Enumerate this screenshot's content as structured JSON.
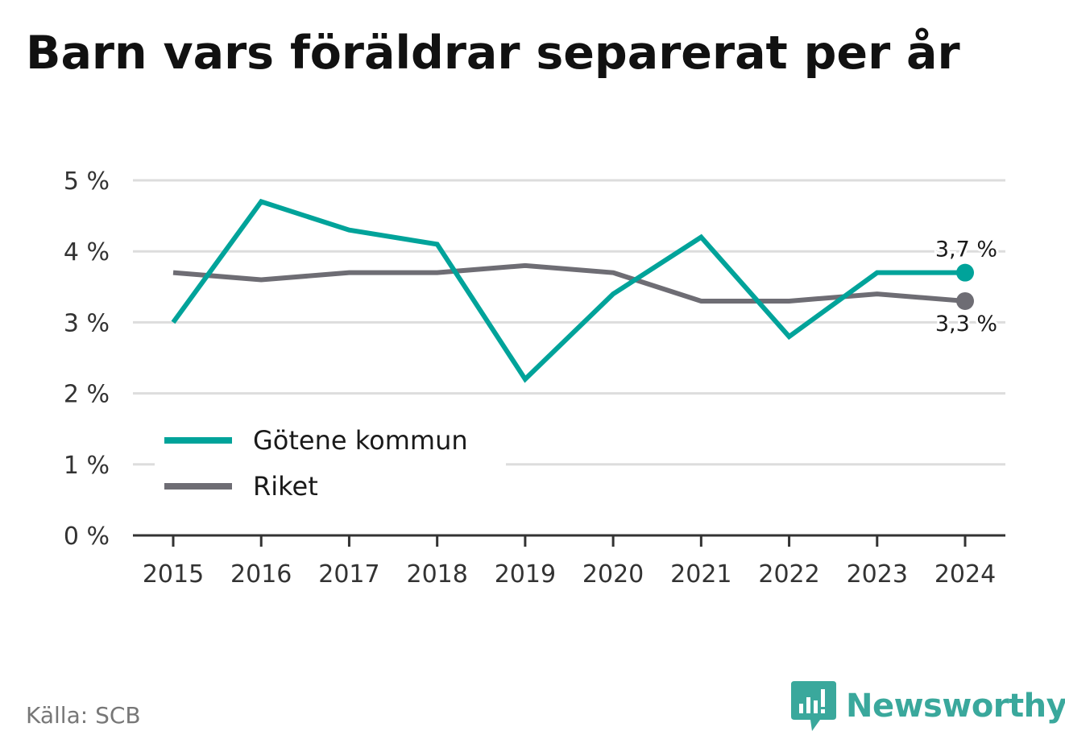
{
  "title": "Barn vars föräldrar separerat per år",
  "source": "Källa: SCB",
  "logo_text": "Newsworthy",
  "colors": {
    "gotene": "#00a39a",
    "riket": "#6e6d74",
    "grid": "#dddddd",
    "axis": "#333333",
    "logo": "#3aa89c"
  },
  "chart_data": {
    "type": "line",
    "x": [
      "2015",
      "2016",
      "2017",
      "2018",
      "2019",
      "2020",
      "2021",
      "2022",
      "2023",
      "2024"
    ],
    "y_ticks": [
      "0 %",
      "1 %",
      "2 %",
      "3 %",
      "4 %",
      "5 %"
    ],
    "ylim": [
      0,
      5
    ],
    "grid": true,
    "legend_position": "bottom-left",
    "series": [
      {
        "name": "Götene kommun",
        "values": [
          3.0,
          4.7,
          4.3,
          4.1,
          2.2,
          3.4,
          4.2,
          2.8,
          3.7,
          3.7
        ],
        "end_label": "3,7 %"
      },
      {
        "name": "Riket",
        "values": [
          3.7,
          3.6,
          3.7,
          3.7,
          3.8,
          3.7,
          3.3,
          3.3,
          3.4,
          3.3
        ],
        "end_label": "3,3 %"
      }
    ]
  }
}
